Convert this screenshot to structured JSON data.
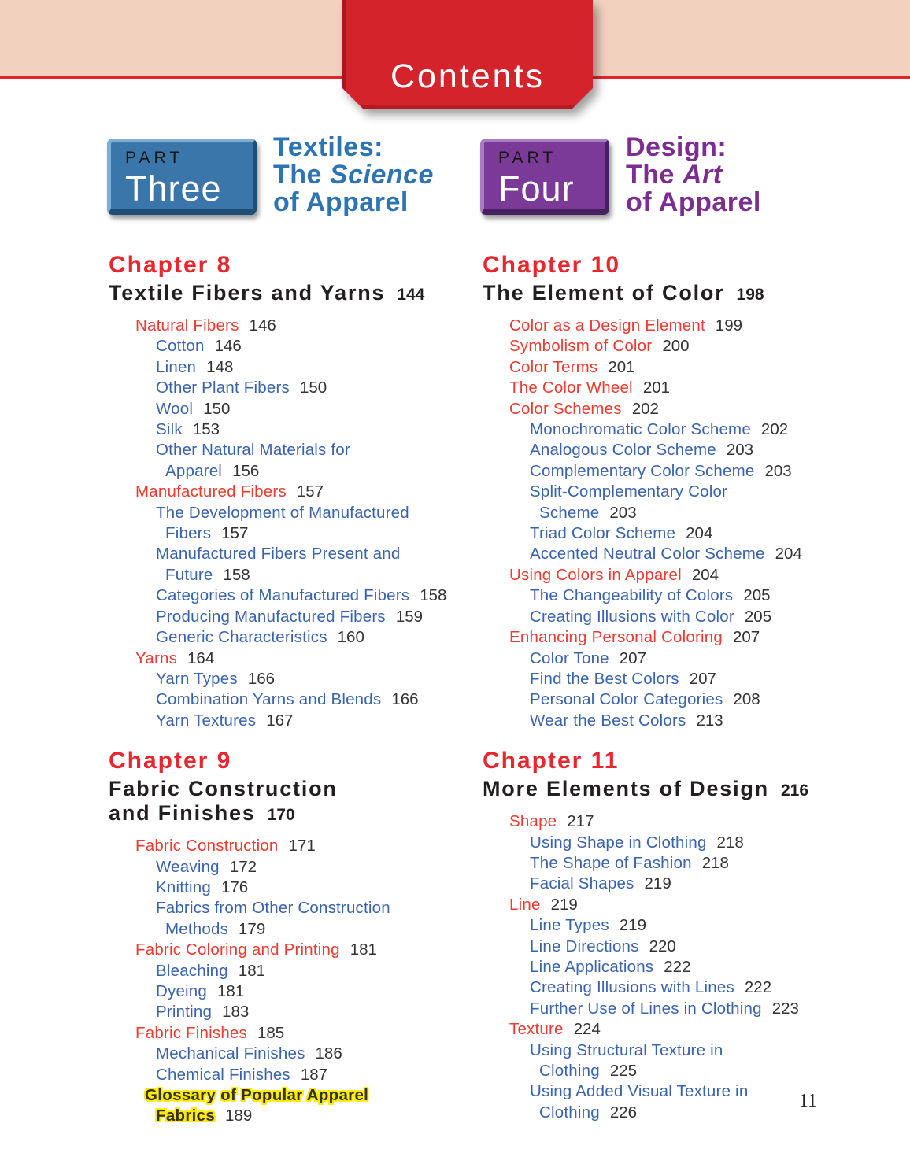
{
  "banner": {
    "title": "Contents"
  },
  "parts": [
    {
      "eyebrow": "PART",
      "name": "Three",
      "color": "blue",
      "box_color": "#3b76ab",
      "title_color": "#2d74b4",
      "title_lines": [
        [
          {
            "t": "Textiles:"
          }
        ],
        [
          {
            "t": "The "
          },
          {
            "t": "Science",
            "i": true
          }
        ],
        [
          {
            "t": "of Apparel"
          }
        ]
      ]
    },
    {
      "eyebrow": "PART",
      "name": "Four",
      "color": "purple",
      "box_color": "#7b3a98",
      "title_color": "#7b2d90",
      "title_lines": [
        [
          {
            "t": "Design:"
          }
        ],
        [
          {
            "t": "The "
          },
          {
            "t": "Art",
            "i": true
          }
        ],
        [
          {
            "t": "of Apparel"
          }
        ]
      ]
    }
  ],
  "columns": [
    {
      "chapters": [
        {
          "number": "Chapter 8",
          "title_lines": [
            "Textile Fibers and Yarns"
          ],
          "page": "144",
          "entries": [
            {
              "type": "section",
              "level": 1,
              "label": "Natural Fibers",
              "page": "146"
            },
            {
              "type": "sub",
              "level": 2,
              "label": "Cotton",
              "page": "146"
            },
            {
              "type": "sub",
              "level": 2,
              "label": "Linen",
              "page": "148"
            },
            {
              "type": "sub",
              "level": 2,
              "label": "Other Plant Fibers",
              "page": "150"
            },
            {
              "type": "sub",
              "level": 2,
              "label": "Wool",
              "page": "150"
            },
            {
              "type": "sub",
              "level": 2,
              "label": "Silk",
              "page": "153"
            },
            {
              "type": "sub",
              "level": 2,
              "label": "Other Natural Materials for"
            },
            {
              "type": "sub",
              "level": 2,
              "cont": true,
              "label": "Apparel",
              "page": "156"
            },
            {
              "type": "section",
              "level": 1,
              "label": "Manufactured Fibers",
              "page": "157"
            },
            {
              "type": "sub",
              "level": 2,
              "label": "The Development of Manufactured"
            },
            {
              "type": "sub",
              "level": 2,
              "cont": true,
              "label": "Fibers",
              "page": "157"
            },
            {
              "type": "sub",
              "level": 2,
              "label": "Manufactured Fibers Present and"
            },
            {
              "type": "sub",
              "level": 2,
              "cont": true,
              "label": "Future",
              "page": "158"
            },
            {
              "type": "sub",
              "level": 2,
              "label": "Categories of Manufactured Fibers",
              "page": "158"
            },
            {
              "type": "sub",
              "level": 2,
              "label": "Producing Manufactured Fibers",
              "page": "159"
            },
            {
              "type": "sub",
              "level": 2,
              "label": "Generic Characteristics",
              "page": "160"
            },
            {
              "type": "section",
              "level": 1,
              "label": "Yarns",
              "page": "164"
            },
            {
              "type": "sub",
              "level": 2,
              "label": "Yarn Types",
              "page": "166"
            },
            {
              "type": "sub",
              "level": 2,
              "label": "Combination Yarns and Blends",
              "page": "166"
            },
            {
              "type": "sub",
              "level": 2,
              "label": "Yarn Textures",
              "page": "167"
            }
          ]
        },
        {
          "number": "Chapter 9",
          "title_lines": [
            "Fabric Construction",
            "and Finishes"
          ],
          "page": "170",
          "entries": [
            {
              "type": "section",
              "level": 1,
              "label": "Fabric Construction",
              "page": "171"
            },
            {
              "type": "sub",
              "level": 2,
              "label": "Weaving",
              "page": "172"
            },
            {
              "type": "sub",
              "level": 2,
              "label": "Knitting",
              "page": "176"
            },
            {
              "type": "sub",
              "level": 2,
              "label": "Fabrics from Other Construction"
            },
            {
              "type": "sub",
              "level": 2,
              "cont": true,
              "label": "Methods",
              "page": "179"
            },
            {
              "type": "section",
              "level": 1,
              "label": "Fabric Coloring and Printing",
              "page": "181"
            },
            {
              "type": "sub",
              "level": 2,
              "label": "Bleaching",
              "page": "181"
            },
            {
              "type": "sub",
              "level": 2,
              "label": "Dyeing",
              "page": "181"
            },
            {
              "type": "sub",
              "level": 2,
              "label": "Printing",
              "page": "183"
            },
            {
              "type": "section",
              "level": 1,
              "label": "Fabric Finishes",
              "page": "185"
            },
            {
              "type": "sub",
              "level": 2,
              "label": "Mechanical Finishes",
              "page": "186"
            },
            {
              "type": "sub",
              "level": 2,
              "label": "Chemical Finishes",
              "page": "187"
            },
            {
              "type": "section",
              "level": 1,
              "highlight": true,
              "label": "Glossary of Popular Apparel"
            },
            {
              "type": "section",
              "level": 1,
              "highlight": true,
              "cont": true,
              "label": "Fabrics",
              "page": "189"
            }
          ]
        }
      ]
    },
    {
      "chapters": [
        {
          "number": "Chapter 10",
          "title_lines": [
            "The Element of Color"
          ],
          "page": "198",
          "entries": [
            {
              "type": "section",
              "level": 1,
              "label": "Color as a Design Element",
              "page": "199"
            },
            {
              "type": "section",
              "level": 1,
              "label": "Symbolism of Color",
              "page": "200"
            },
            {
              "type": "section",
              "level": 1,
              "label": "Color Terms",
              "page": "201"
            },
            {
              "type": "section",
              "level": 1,
              "label": "The Color Wheel",
              "page": "201"
            },
            {
              "type": "section",
              "level": 1,
              "label": "Color Schemes",
              "page": "202"
            },
            {
              "type": "sub",
              "level": 2,
              "label": "Monochromatic Color Scheme",
              "page": "202"
            },
            {
              "type": "sub",
              "level": 2,
              "label": "Analogous Color Scheme",
              "page": "203"
            },
            {
              "type": "sub",
              "level": 2,
              "label": "Complementary Color Scheme",
              "page": "203"
            },
            {
              "type": "sub",
              "level": 2,
              "label": "Split-Complementary Color"
            },
            {
              "type": "sub",
              "level": 2,
              "cont": true,
              "label": "Scheme",
              "page": "203"
            },
            {
              "type": "sub",
              "level": 2,
              "label": "Triad Color Scheme",
              "page": "204"
            },
            {
              "type": "sub",
              "level": 2,
              "label": "Accented Neutral Color Scheme",
              "page": "204"
            },
            {
              "type": "section",
              "level": 1,
              "label": "Using Colors in Apparel",
              "page": "204"
            },
            {
              "type": "sub",
              "level": 2,
              "label": "The Changeability of Colors",
              "page": "205"
            },
            {
              "type": "sub",
              "level": 2,
              "label": "Creating Illusions with Color",
              "page": "205"
            },
            {
              "type": "section",
              "level": 1,
              "label": "Enhancing Personal Coloring",
              "page": "207"
            },
            {
              "type": "sub",
              "level": 2,
              "label": "Color Tone",
              "page": "207"
            },
            {
              "type": "sub",
              "level": 2,
              "label": "Find the Best Colors",
              "page": "207"
            },
            {
              "type": "sub",
              "level": 2,
              "label": "Personal Color Categories",
              "page": "208"
            },
            {
              "type": "sub",
              "level": 2,
              "label": "Wear the Best Colors",
              "page": "213"
            }
          ]
        },
        {
          "number": "Chapter 11",
          "title_lines": [
            "More Elements of Design"
          ],
          "page": "216",
          "entries": [
            {
              "type": "section",
              "level": 1,
              "label": "Shape",
              "page": "217"
            },
            {
              "type": "sub",
              "level": 2,
              "label": "Using Shape in Clothing",
              "page": "218"
            },
            {
              "type": "sub",
              "level": 2,
              "label": "The Shape of Fashion",
              "page": "218"
            },
            {
              "type": "sub",
              "level": 2,
              "label": "Facial Shapes",
              "page": "219"
            },
            {
              "type": "section",
              "level": 1,
              "label": "Line",
              "page": "219"
            },
            {
              "type": "sub",
              "level": 2,
              "label": "Line Types",
              "page": "219"
            },
            {
              "type": "sub",
              "level": 2,
              "label": "Line Directions",
              "page": "220"
            },
            {
              "type": "sub",
              "level": 2,
              "label": "Line Applications",
              "page": "222"
            },
            {
              "type": "sub",
              "level": 2,
              "label": "Creating Illusions with Lines",
              "page": "222"
            },
            {
              "type": "sub",
              "level": 2,
              "label": "Further Use of Lines in Clothing",
              "page": "223"
            },
            {
              "type": "section",
              "level": 1,
              "label": "Texture",
              "page": "224"
            },
            {
              "type": "sub",
              "level": 2,
              "label": "Using Structural Texture in"
            },
            {
              "type": "sub",
              "level": 2,
              "cont": true,
              "label": "Clothing",
              "page": "225"
            },
            {
              "type": "sub",
              "level": 2,
              "label": "Using Added Visual Texture in"
            },
            {
              "type": "sub",
              "level": 2,
              "cont": true,
              "label": "Clothing",
              "page": "226"
            }
          ]
        }
      ]
    }
  ],
  "page": {
    "footer_page_number": "11"
  },
  "colors": {
    "banner_bg": "#f2d1bf",
    "rule_red": "#e9242b",
    "tab_red": "#d4232b",
    "part_three_blue": "#3b76ab",
    "part_four_purple": "#7b3a98",
    "part_title_blue": "#2d74b4",
    "part_title_purple": "#7b2d90",
    "chapter_red": "#e8262d",
    "entry_section_red": "#ee3a30",
    "entry_sub_blue": "#3a63ad",
    "entry_page_gray": "#333335",
    "highlight_yellow": "#ffec00",
    "ink": "#231f20"
  }
}
